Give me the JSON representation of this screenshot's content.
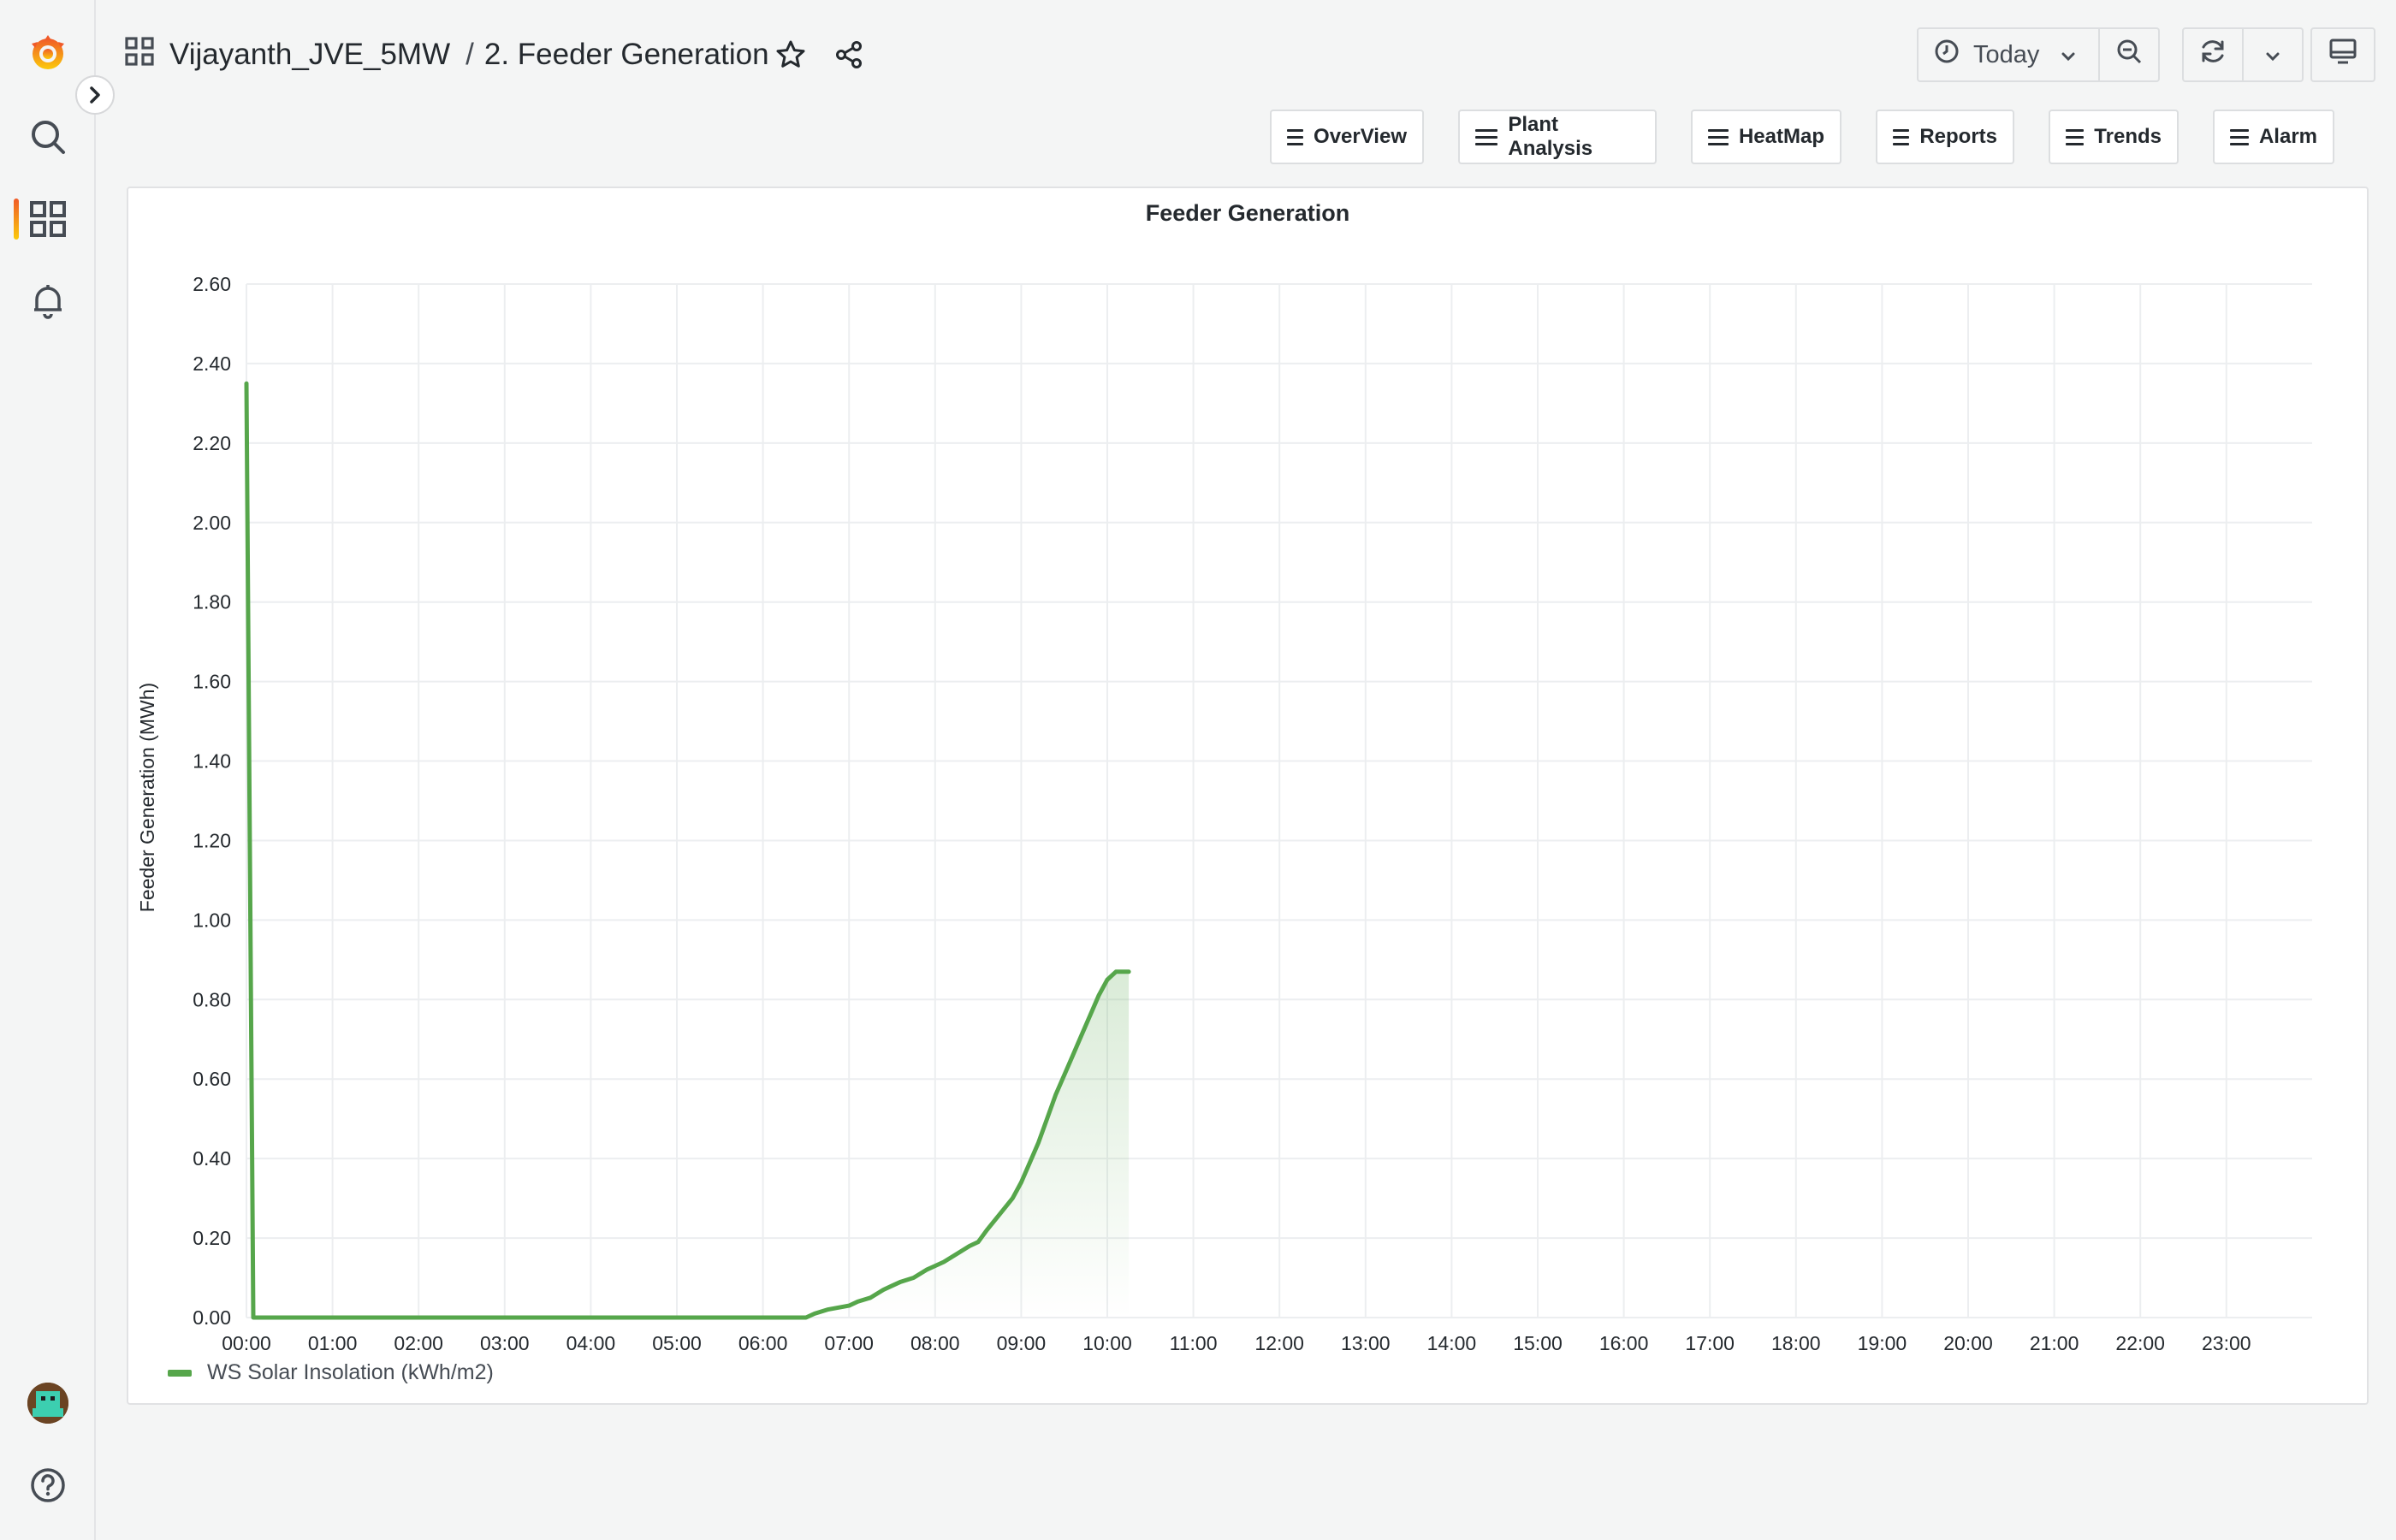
{
  "sidebar": {
    "items": [
      {
        "name": "grafana-logo-icon"
      },
      {
        "name": "search-icon"
      },
      {
        "name": "dashboards-icon",
        "active": true
      },
      {
        "name": "alerting-bell-icon"
      }
    ],
    "bottom": [
      {
        "name": "user-avatar"
      },
      {
        "name": "help-icon"
      }
    ]
  },
  "header": {
    "folder": "Vijayanth_JVE_5MW",
    "separator": "/",
    "dashboard": "2. Feeder Generation"
  },
  "toolbar": {
    "time_range": "Today"
  },
  "links": [
    {
      "label": "OverView"
    },
    {
      "label": "Plant Analysis"
    },
    {
      "label": "HeatMap"
    },
    {
      "label": "Reports"
    },
    {
      "label": "Trends"
    },
    {
      "label": "Alarm"
    }
  ],
  "panel": {
    "title": "Feeder Generation"
  },
  "chart_data": {
    "type": "area",
    "title": "Feeder Generation",
    "xlabel": "",
    "ylabel": "Feeder Generation (MWh)",
    "x_ticks": [
      "00:00",
      "01:00",
      "02:00",
      "03:00",
      "04:00",
      "05:00",
      "06:00",
      "07:00",
      "08:00",
      "09:00",
      "10:00",
      "11:00",
      "12:00",
      "13:00",
      "14:00",
      "15:00",
      "16:00",
      "17:00",
      "18:00",
      "19:00",
      "20:00",
      "21:00",
      "22:00",
      "23:00"
    ],
    "y_ticks": [
      "0.00",
      "0.20",
      "0.40",
      "0.60",
      "0.80",
      "1.00",
      "1.20",
      "1.40",
      "1.60",
      "1.80",
      "2.00",
      "2.20",
      "2.40",
      "2.60"
    ],
    "xlim_hours": [
      0,
      24
    ],
    "ylim": [
      0,
      2.6
    ],
    "grid": true,
    "legend_position": "bottom-left",
    "color": "#56a64b",
    "series": [
      {
        "name": "WS Solar Insolation (kWh/m2)",
        "x_hours": [
          0.0,
          0.08,
          6.5,
          6.6,
          6.75,
          7.0,
          7.1,
          7.25,
          7.4,
          7.5,
          7.6,
          7.75,
          7.9,
          8.0,
          8.1,
          8.25,
          8.4,
          8.5,
          8.6,
          8.75,
          8.9,
          9.0,
          9.1,
          9.2,
          9.3,
          9.4,
          9.5,
          9.6,
          9.7,
          9.8,
          9.9,
          10.0,
          10.1,
          10.15,
          10.25
        ],
        "values": [
          2.35,
          0.0,
          0.0,
          0.01,
          0.02,
          0.03,
          0.04,
          0.05,
          0.07,
          0.08,
          0.09,
          0.1,
          0.12,
          0.13,
          0.14,
          0.16,
          0.18,
          0.19,
          0.22,
          0.26,
          0.3,
          0.34,
          0.39,
          0.44,
          0.5,
          0.56,
          0.61,
          0.66,
          0.71,
          0.76,
          0.81,
          0.85,
          0.87,
          0.87,
          0.87
        ]
      }
    ]
  }
}
